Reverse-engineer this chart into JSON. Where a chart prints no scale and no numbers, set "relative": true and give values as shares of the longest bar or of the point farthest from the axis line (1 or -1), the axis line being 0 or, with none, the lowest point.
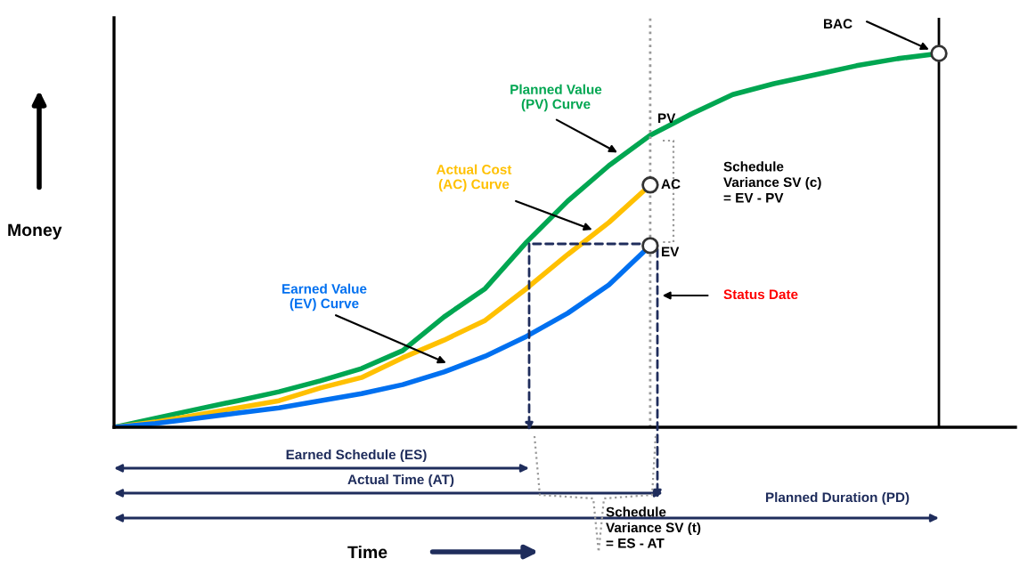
{
  "chart_data": {
    "type": "line",
    "relative": true,
    "ylabel": "Money",
    "categories": [
      null,
      null,
      null,
      null,
      null,
      null,
      null,
      null,
      null,
      null,
      null,
      null,
      null,
      null,
      null,
      null,
      null,
      null,
      null,
      null,
      null
    ],
    "series": [
      {
        "name": "Planned Value\n(PV) Curve",
        "color": "#00a651",
        "values": [
          0,
          0.024,
          0.048,
          0.071,
          0.095,
          0.124,
          0.157,
          0.205,
          0.295,
          0.371,
          0.495,
          0.605,
          0.7,
          0.781,
          0.838,
          0.89,
          0.919,
          0.943,
          0.967,
          0.986,
          1
        ]
      },
      {
        "name": "Actual Cost\n(AC) Curve",
        "color": "#ffc000",
        "values": [
          0,
          0.014,
          0.033,
          0.052,
          0.071,
          0.105,
          0.133,
          0.186,
          0.233,
          0.286,
          0.371,
          0.462,
          0.548,
          0.648,
          null,
          null,
          null,
          null,
          null,
          null,
          null
        ]
      },
      {
        "name": "Earned Value\n(EV) Curve",
        "color": "#0070f0",
        "values": [
          0,
          0.01,
          0.024,
          0.038,
          0.052,
          0.071,
          0.09,
          0.114,
          0.148,
          0.19,
          0.243,
          0.305,
          0.381,
          0.486,
          null,
          null,
          null,
          null,
          null,
          null,
          null
        ]
      }
    ],
    "annotations": [
      "BAC",
      "PV",
      "AC",
      "EV",
      "Schedule\nVariance SV (c)\n= EV - PV",
      "Earned Schedule (ES)",
      "Actual Time (AT)",
      "Planned Duration (PD)",
      "Schedule\nVariance SV (t)\n= ES - AT",
      "Status Date",
      "Time"
    ],
    "legend": false,
    "marker": "none",
    "line_style": "solid"
  }
}
